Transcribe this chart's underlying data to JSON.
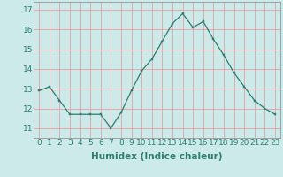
{
  "xlabel": "Humidex (Indice chaleur)",
  "x_values": [
    0,
    1,
    2,
    3,
    4,
    5,
    6,
    7,
    8,
    9,
    10,
    11,
    12,
    13,
    14,
    15,
    16,
    17,
    18,
    19,
    20,
    21,
    22,
    23
  ],
  "y_values": [
    12.9,
    13.1,
    12.4,
    11.7,
    11.7,
    11.7,
    11.7,
    11.0,
    11.8,
    12.9,
    13.9,
    14.5,
    15.4,
    16.3,
    16.8,
    16.1,
    16.4,
    15.5,
    14.7,
    13.8,
    13.1,
    12.4,
    12.0,
    11.7
  ],
  "line_color": "#2e7d6e",
  "marker": "s",
  "marker_size": 2.0,
  "bg_color": "#cceaea",
  "grid_color": "#e8a0a0",
  "ylim_min": 10.5,
  "ylim_max": 17.4,
  "xlim_min": -0.5,
  "xlim_max": 23.5,
  "yticks": [
    11,
    12,
    13,
    14,
    15,
    16,
    17
  ],
  "tick_label_fontsize": 6.5,
  "axis_label_fontsize": 7.5
}
